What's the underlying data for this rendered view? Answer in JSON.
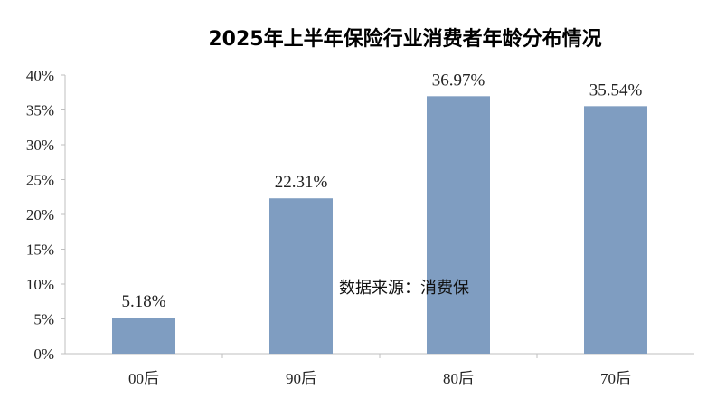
{
  "chart_data": {
    "type": "bar",
    "title": "2025年上半年保险行业消费者年龄分布情况",
    "categories": [
      "00后",
      "90后",
      "80后",
      "70后"
    ],
    "values": [
      5.18,
      22.31,
      36.97,
      35.54
    ],
    "value_labels": [
      "5.18%",
      "22.31%",
      "36.97%",
      "35.54%"
    ],
    "y_ticks": [
      "0%",
      "5%",
      "10%",
      "15%",
      "20%",
      "25%",
      "30%",
      "35%",
      "40%"
    ],
    "ylim": [
      0,
      40
    ],
    "bar_color": "#7f9dc1",
    "grid": false,
    "legend": "none",
    "xlabel": "",
    "ylabel": "",
    "annotation": "数据来源：消费保"
  }
}
